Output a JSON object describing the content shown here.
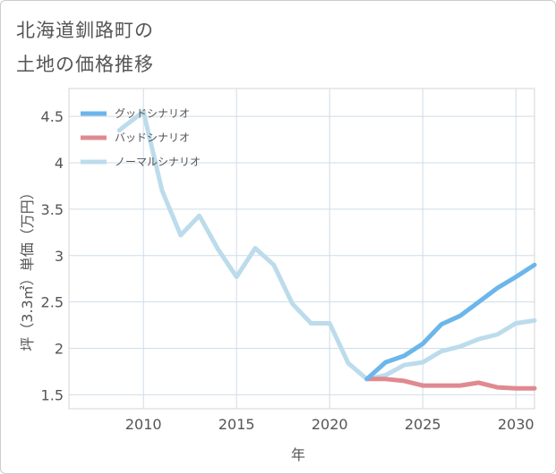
{
  "title_lines": [
    "北海道釧路町の",
    "土地の価格推移"
  ],
  "chart_data": {
    "type": "line",
    "xlabel": "年",
    "ylabel": "坪（3.3㎡）単価（万円）",
    "xlim": [
      2006,
      2031
    ],
    "ylim": [
      1.35,
      4.8
    ],
    "x_ticks": [
      2010,
      2015,
      2020,
      2025,
      2030
    ],
    "y_ticks": [
      1.5,
      2,
      2.5,
      3,
      3.5,
      4,
      4.5
    ],
    "y_tick_labels": [
      "1.5",
      "2",
      "2.5",
      "3",
      "3.5",
      "4",
      "4.5"
    ],
    "grid": true,
    "legend_position": "top-left",
    "series": [
      {
        "name": "グッドシナリオ",
        "color": "#6cb6ea",
        "x": [
          2022,
          2023,
          2024,
          2025,
          2026,
          2027,
          2028,
          2029,
          2030,
          2031
        ],
        "values": [
          1.67,
          1.85,
          1.92,
          2.05,
          2.26,
          2.35,
          2.5,
          2.65,
          2.77,
          2.9
        ]
      },
      {
        "name": "バッドシナリオ",
        "color": "#df8a90",
        "x": [
          2022,
          2023,
          2024,
          2025,
          2026,
          2027,
          2028,
          2029,
          2030,
          2031
        ],
        "values": [
          1.67,
          1.67,
          1.65,
          1.6,
          1.6,
          1.6,
          1.63,
          1.58,
          1.57,
          1.57
        ]
      },
      {
        "name": "ノーマルシナリオ",
        "color": "#bcdcec",
        "x": [
          2008.7,
          2010,
          2011,
          2012,
          2013,
          2014,
          2015,
          2016,
          2017,
          2018,
          2019,
          2020,
          2021,
          2022,
          2023,
          2024,
          2025,
          2026,
          2027,
          2028,
          2029,
          2030,
          2031
        ],
        "values": [
          4.35,
          4.55,
          3.7,
          3.22,
          3.43,
          3.07,
          2.77,
          3.08,
          2.9,
          2.48,
          2.27,
          2.27,
          1.84,
          1.67,
          1.71,
          1.82,
          1.85,
          1.97,
          2.02,
          2.1,
          2.15,
          2.27,
          2.3
        ]
      }
    ]
  }
}
